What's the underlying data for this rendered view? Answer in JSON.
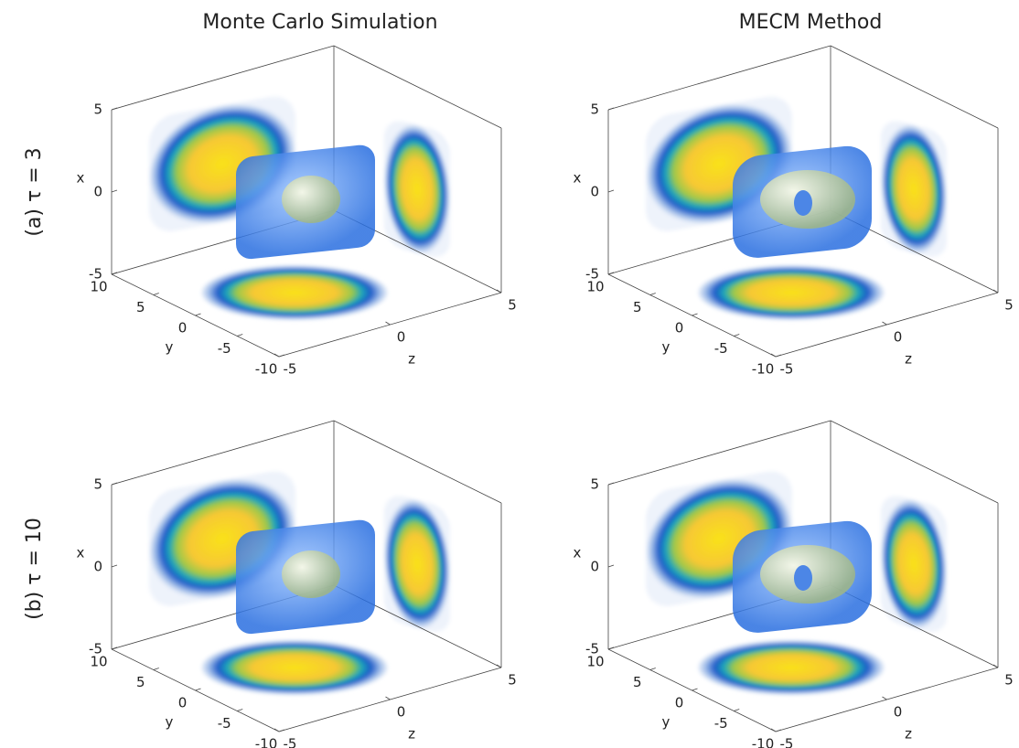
{
  "column_titles": [
    "Monte Carlo Simulation",
    "MECM Method"
  ],
  "row_labels": [
    "(a) τ = 3",
    "(b) τ = 10"
  ],
  "axes": {
    "x_label": "x",
    "y_label": "y",
    "z_label": "z",
    "x_ticks": [
      -5,
      0,
      5
    ],
    "y_ticks": [
      -10,
      -5,
      0,
      5,
      10
    ],
    "z_ticks": [
      -5,
      0,
      5
    ]
  }
}
